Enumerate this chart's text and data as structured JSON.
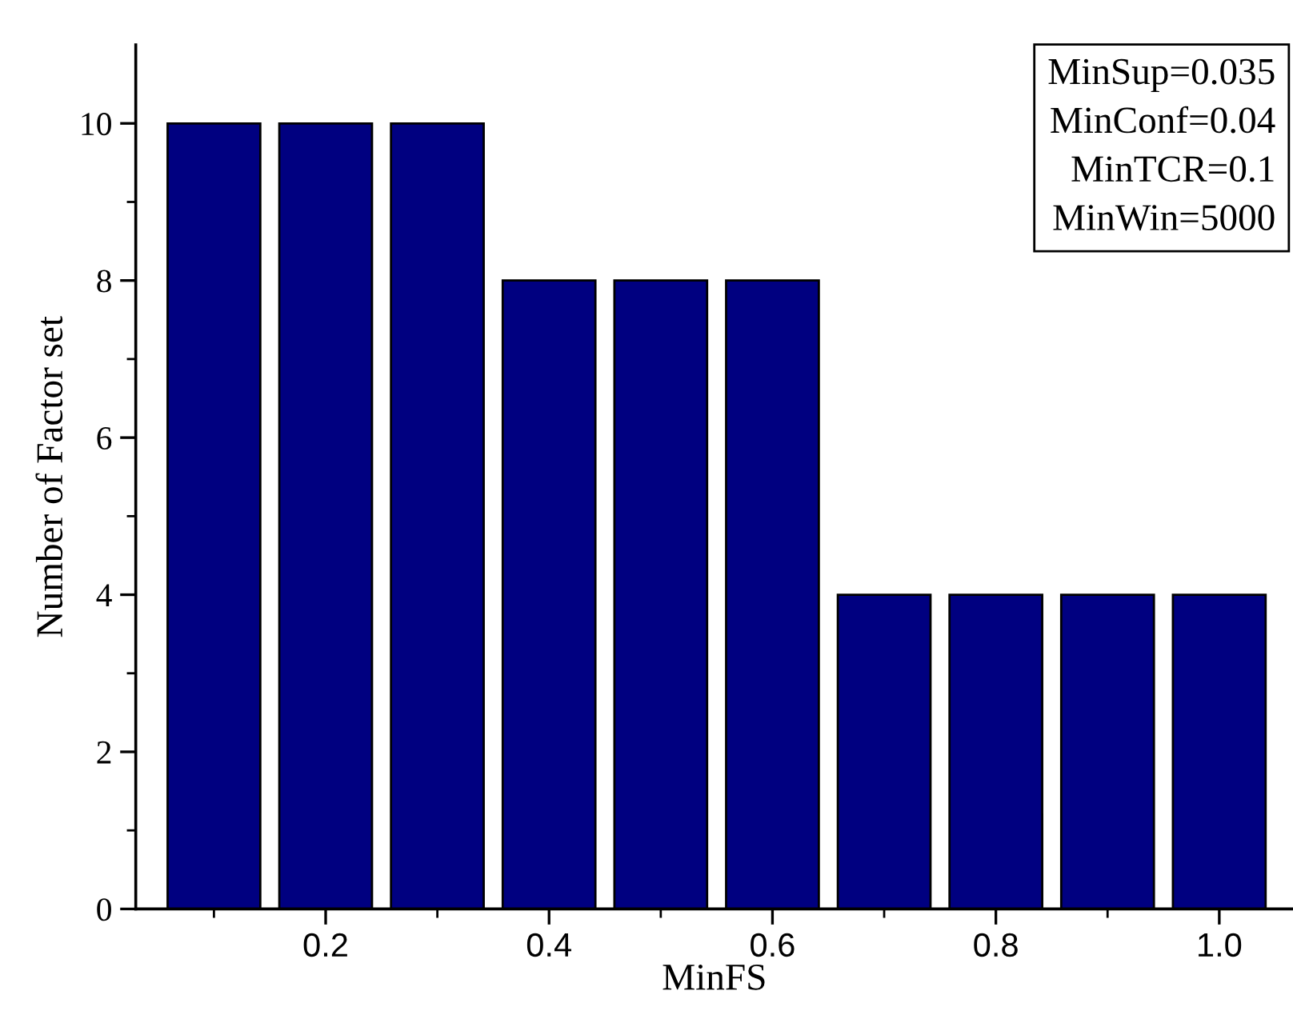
{
  "chart_data": {
    "type": "bar",
    "xlabel": "MinFS",
    "ylabel": "Number of Factor set",
    "x": [
      0.1,
      0.2,
      0.3,
      0.4,
      0.5,
      0.6,
      0.7,
      0.8,
      0.9,
      1.0
    ],
    "values": [
      10,
      10,
      10,
      8,
      8,
      8,
      4,
      4,
      4,
      4
    ],
    "color": "#000080",
    "xlim": [
      0.03,
      1.066
    ],
    "xticks": [
      {
        "value": 0.2,
        "label": "0.2"
      },
      {
        "value": 0.4,
        "label": "0.4"
      },
      {
        "value": 0.6,
        "label": "0.6"
      },
      {
        "value": 0.8,
        "label": "0.8"
      },
      {
        "value": 1.0,
        "label": "1.0"
      }
    ],
    "ylim": [
      0,
      11
    ],
    "yticks": [
      0,
      2,
      4,
      6,
      8,
      10
    ],
    "grid": false,
    "annotations": [
      "MinSup=0.035",
      "MinConf=0.04",
      "MinTCR=0.1",
      "MinWin=5000"
    ]
  }
}
